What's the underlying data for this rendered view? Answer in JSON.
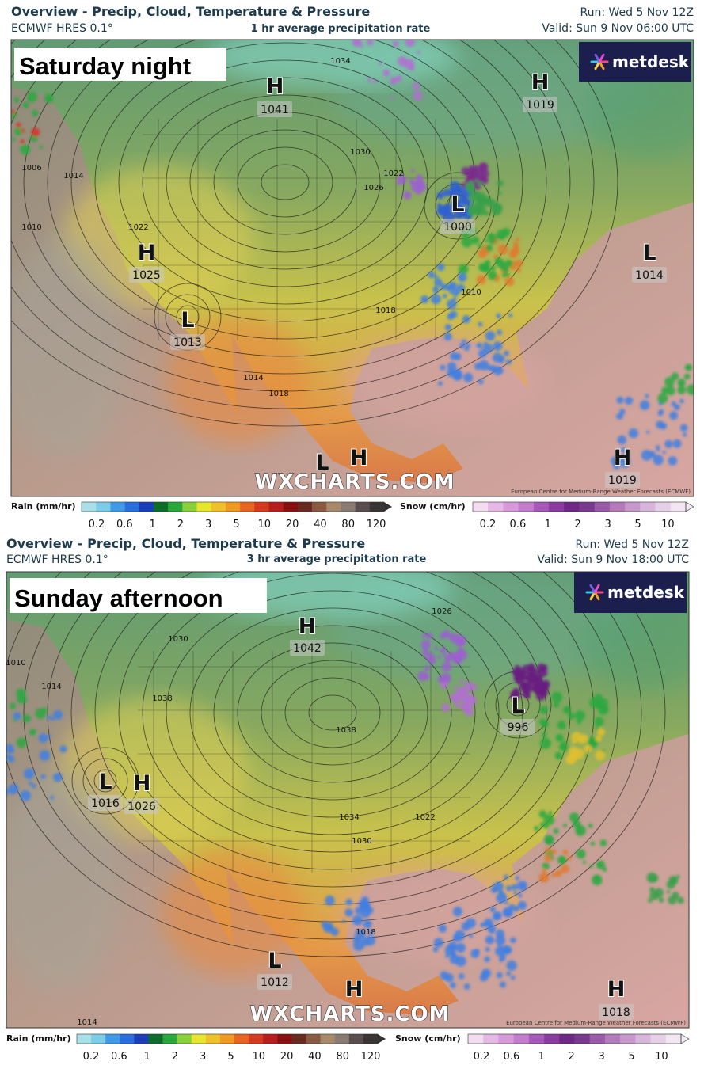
{
  "panels": [
    {
      "title": "Overview - Precip, Cloud, Temperature & Pressure",
      "model": "ECMWF HRES 0.1°",
      "rate": "1 hr average precipitation rate",
      "run": "Run: Wed 5 Nov 12Z",
      "valid": "Valid: Sun 9 Nov 06:00 UTC",
      "label": "Saturday night",
      "brand": "metdesk",
      "watermark": "WXCHARTS.COM",
      "credit": "European Centre for Medium-Range Weather Forecasts (ECMWF)",
      "centers": [
        {
          "type": "H",
          "value": 1041
        },
        {
          "type": "H",
          "value": 1019
        },
        {
          "type": "L",
          "value": 1000
        },
        {
          "type": "H",
          "value": 1025
        },
        {
          "type": "L",
          "value": 1014
        },
        {
          "type": "L",
          "value": 1013
        },
        {
          "type": "L"
        },
        {
          "type": "H"
        },
        {
          "type": "H",
          "value": 1019
        }
      ],
      "isobars": [
        1034,
        1030,
        1026,
        1022,
        1014,
        1010,
        1006,
        1018,
        1014,
        1018,
        1010,
        1022
      ],
      "legend": {
        "rain_label": "Rain (mm/hr)",
        "rain_ticks": [
          0.2,
          0.6,
          1,
          2,
          3,
          5,
          10,
          20,
          40,
          80,
          120
        ],
        "snow_label": "Snow (cm/hr)",
        "snow_ticks": [
          0.2,
          0.6,
          1,
          2,
          3,
          5,
          10
        ]
      }
    },
    {
      "title": "Overview - Precip, Cloud, Temperature & Pressure",
      "model": "ECMWF HRES 0.1°",
      "rate": "3 hr average precipitation rate",
      "run": "Run: Wed 5 Nov 12Z",
      "valid": "Valid: Sun 9 Nov 18:00 UTC",
      "label": "Sunday afternoon",
      "brand": "metdesk",
      "watermark": "WXCHARTS.COM",
      "credit": "European Centre for Medium-Range Weather Forecasts (ECMWF)",
      "centers": [
        {
          "type": "H",
          "value": 1042
        },
        {
          "type": "L",
          "value": 996
        },
        {
          "type": "L",
          "value": 1016
        },
        {
          "type": "H",
          "value": 1026
        },
        {
          "type": "L",
          "value": 1012
        },
        {
          "type": "H"
        },
        {
          "type": "H",
          "value": 1018
        }
      ],
      "isobars": [
        1010,
        1030,
        1038,
        1038,
        1034,
        1030,
        1022,
        1026,
        1014,
        1018,
        1014
      ],
      "legend": {
        "rain_label": "Rain (mm/hr)",
        "rain_ticks": [
          0.2,
          0.6,
          1,
          2,
          3,
          5,
          10,
          20,
          40,
          80,
          120
        ],
        "snow_label": "Snow (cm/hr)",
        "snow_ticks": [
          0.2,
          0.6,
          1,
          2,
          3,
          5,
          10
        ]
      }
    }
  ]
}
